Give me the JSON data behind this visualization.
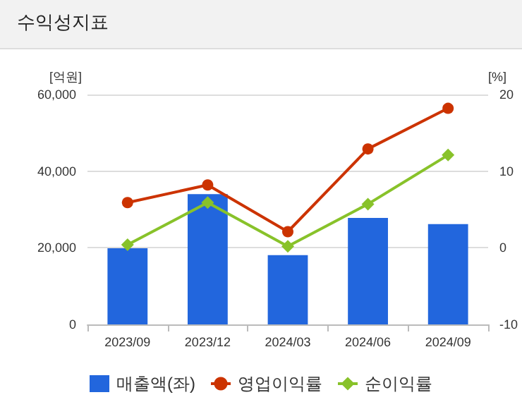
{
  "chart_data": {
    "type": "bar",
    "title": "수익성지표",
    "ylabel": "[억원]",
    "y2label": "[%]",
    "categories": [
      "2023/09",
      "2023/12",
      "2024/03",
      "2024/06",
      "2024/09"
    ],
    "series": [
      {
        "name": "매출액(좌)",
        "color": "#2266dd",
        "values": [
          19900,
          34000,
          18100,
          27800,
          26200
        ]
      },
      {
        "name": "영업이익률",
        "type": "line",
        "axis": "y2",
        "marker": "circle",
        "color": "#cc3300",
        "values": [
          5.9,
          8.2,
          2.1,
          12.9,
          18.2
        ]
      },
      {
        "name": "순이익률",
        "type": "line",
        "axis": "y2",
        "marker": "diamond",
        "color": "#88c22a",
        "values": [
          0.4,
          5.9,
          0.2,
          5.7,
          12.1
        ]
      }
    ],
    "ylim": [
      0,
      60000
    ],
    "yticks": [
      0,
      {
        "value": 20000,
        "label": "20,000"
      },
      {
        "value": 40000,
        "label": "40,000"
      },
      {
        "value": 60000,
        "label": "60,000"
      }
    ],
    "y2lim": [
      -10,
      20
    ],
    "y2ticks": [
      -10,
      0,
      10,
      20
    ],
    "grid": "y",
    "legend": "bottom"
  }
}
